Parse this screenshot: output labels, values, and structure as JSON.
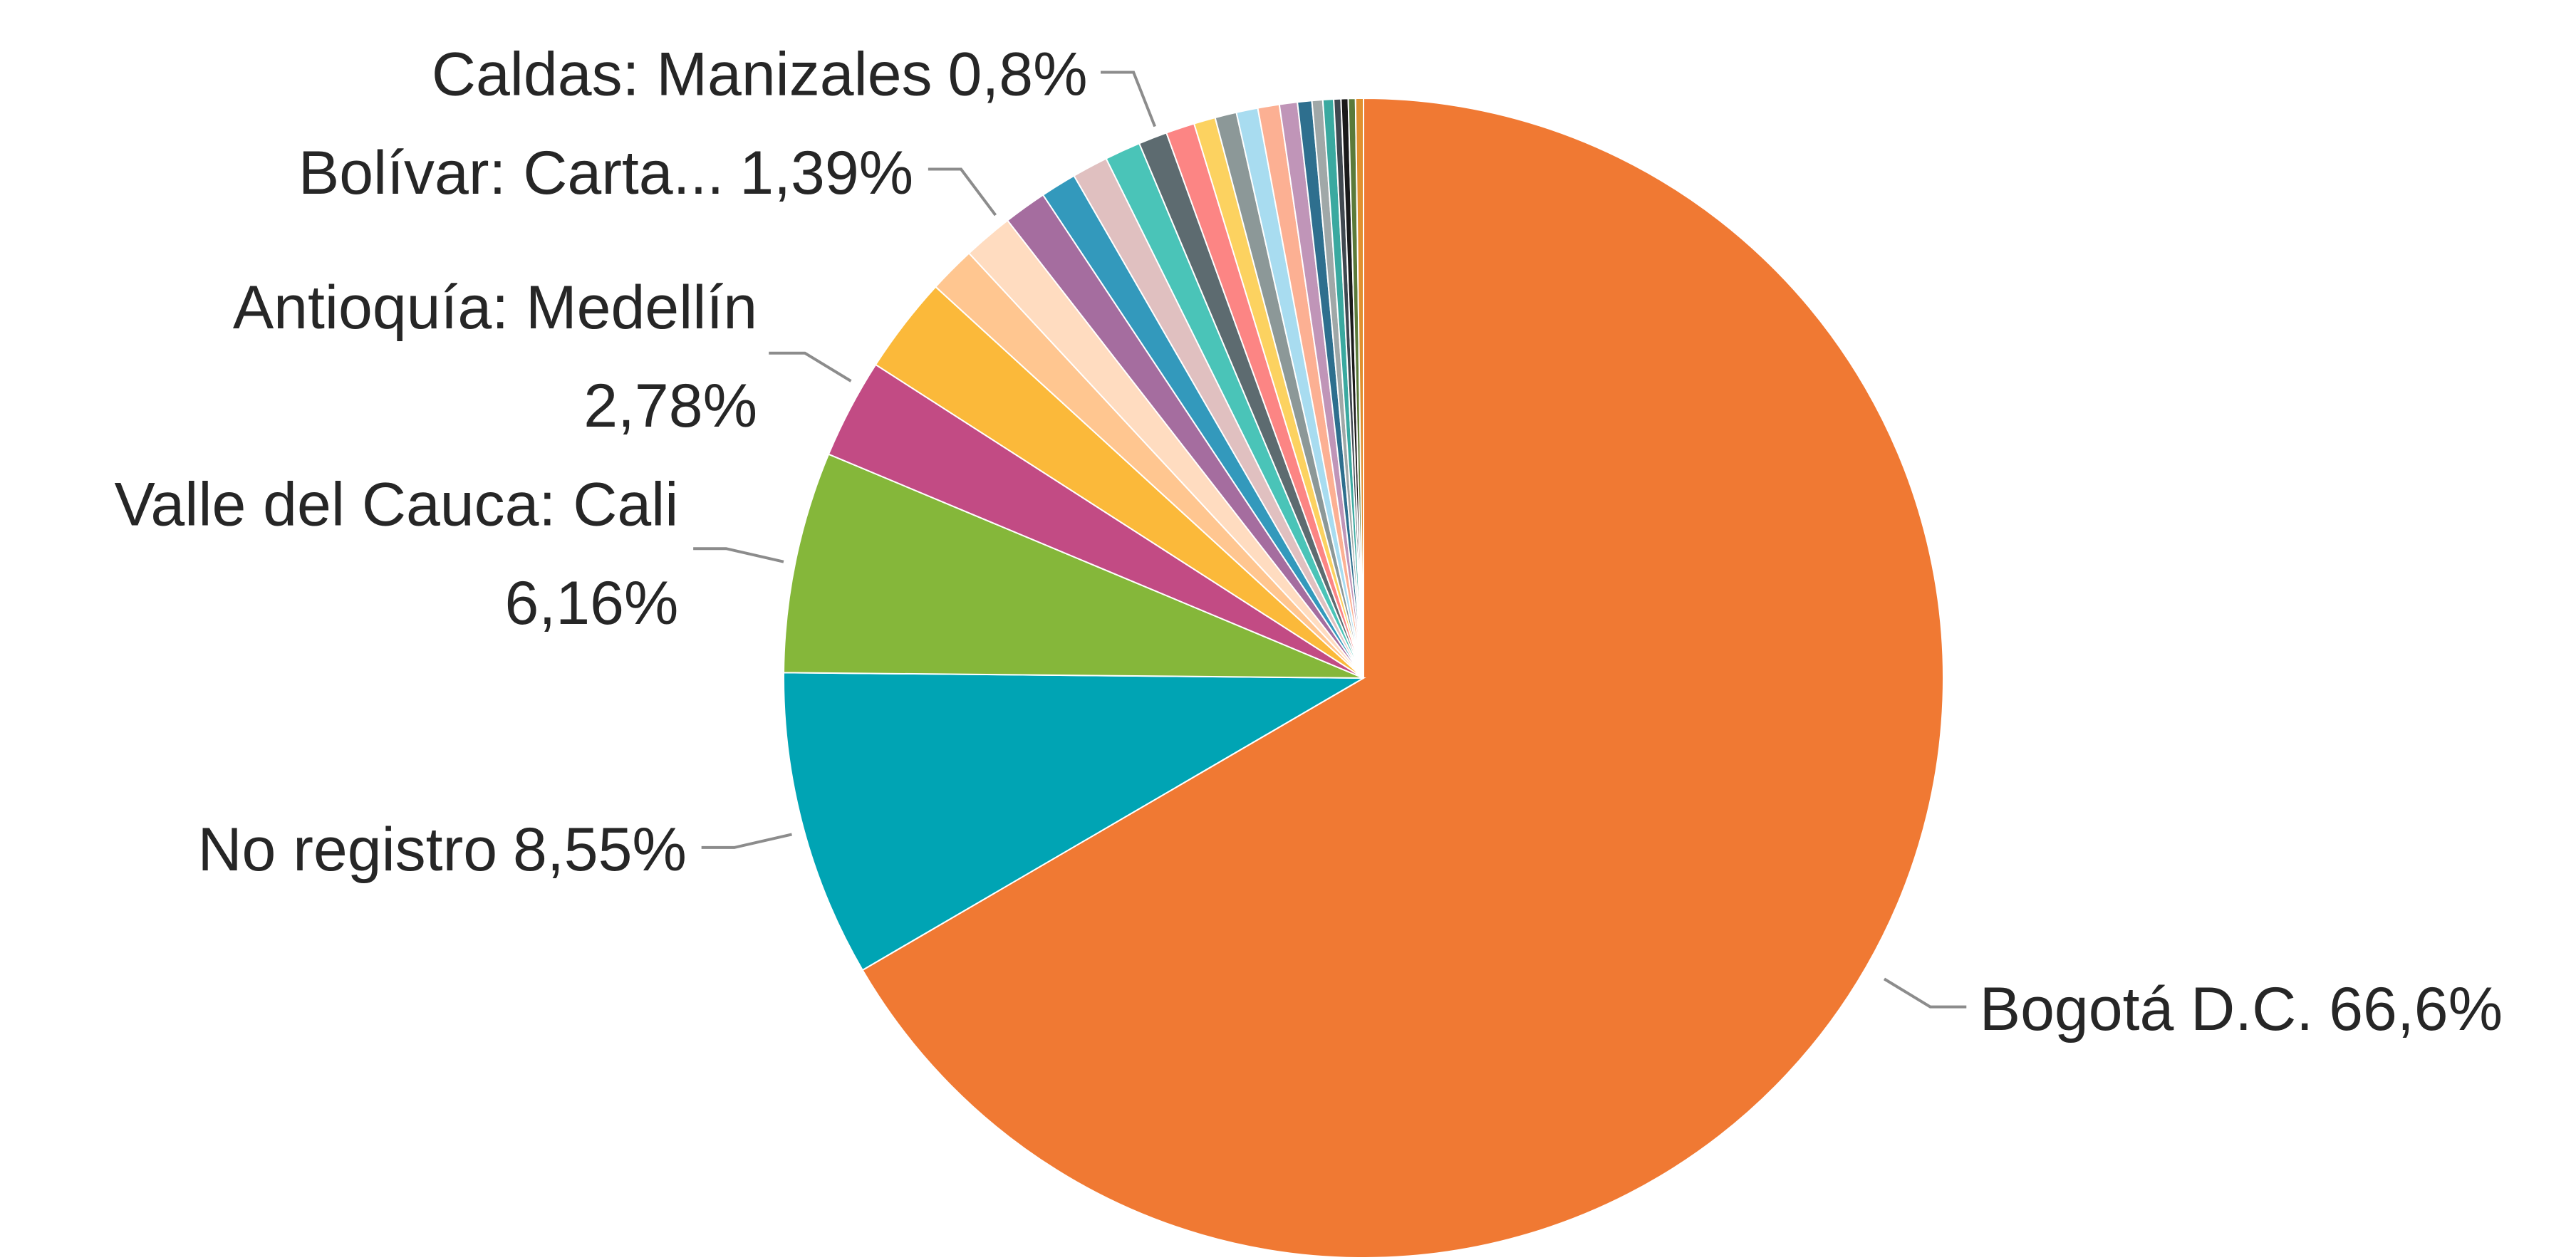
{
  "chart_data": {
    "type": "pie",
    "categories": [
      "Bogotá D.C.",
      "No registro",
      "Valle del Cauca: Cali",
      "Antioquía: Medellín",
      null,
      null,
      "Bolívar: Carta...",
      null,
      null,
      null,
      null,
      "Caldas: Manizales",
      null,
      null,
      null,
      null,
      null,
      null,
      null,
      null,
      null,
      null,
      null,
      null,
      null
    ],
    "values": [
      66.6,
      8.55,
      6.16,
      2.78,
      2.7,
      1.3,
      1.39,
      1.2,
      1.0,
      1.0,
      1.0,
      0.8,
      0.8,
      0.6,
      0.6,
      0.6,
      0.6,
      0.5,
      0.4,
      0.3,
      0.3,
      0.2,
      0.2,
      0.2,
      0.22
    ],
    "value_labels": [
      "66,6%",
      "8,55%",
      "6,16%",
      "2,78%",
      null,
      null,
      "1,39%",
      null,
      null,
      null,
      null,
      "0,8%",
      null,
      null,
      null,
      null,
      null,
      null,
      null,
      null,
      null,
      null,
      null,
      null,
      null
    ],
    "colors": [
      "#f07933",
      "#00a4b4",
      "#85b73a",
      "#c24b84",
      "#fbb93a",
      "#ffc690",
      "#ffdcc0",
      "#a56d9f",
      "#3399bc",
      "#e0c0c0",
      "#4ac4b8",
      "#5d6b70",
      "#fc8584",
      "#fcd260",
      "#8c9898",
      "#a8dcf0",
      "#fcb093",
      "#c095b8",
      "#2e6f8e",
      "#a0a8a8",
      "#3aa9a0",
      "#404850",
      "#1a1a1a",
      "#5b7a3a",
      "#e09030"
    ]
  }
}
